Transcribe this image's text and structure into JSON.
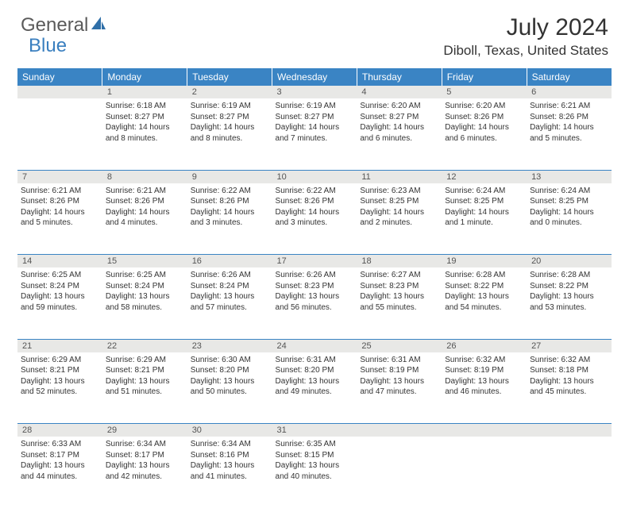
{
  "logo": {
    "text1": "General",
    "text2": "Blue"
  },
  "title": "July 2024",
  "location": "Diboll, Texas, United States",
  "header_bg": "#3a84c4",
  "daynum_bg": "#e8e8e6",
  "border_color": "#3a84c4",
  "days": [
    "Sunday",
    "Monday",
    "Tuesday",
    "Wednesday",
    "Thursday",
    "Friday",
    "Saturday"
  ],
  "weeks": [
    {
      "nums": [
        "",
        "1",
        "2",
        "3",
        "4",
        "5",
        "6"
      ],
      "cells": [
        null,
        {
          "sunrise": "Sunrise: 6:18 AM",
          "sunset": "Sunset: 8:27 PM",
          "day1": "Daylight: 14 hours",
          "day2": "and 8 minutes."
        },
        {
          "sunrise": "Sunrise: 6:19 AM",
          "sunset": "Sunset: 8:27 PM",
          "day1": "Daylight: 14 hours",
          "day2": "and 8 minutes."
        },
        {
          "sunrise": "Sunrise: 6:19 AM",
          "sunset": "Sunset: 8:27 PM",
          "day1": "Daylight: 14 hours",
          "day2": "and 7 minutes."
        },
        {
          "sunrise": "Sunrise: 6:20 AM",
          "sunset": "Sunset: 8:27 PM",
          "day1": "Daylight: 14 hours",
          "day2": "and 6 minutes."
        },
        {
          "sunrise": "Sunrise: 6:20 AM",
          "sunset": "Sunset: 8:26 PM",
          "day1": "Daylight: 14 hours",
          "day2": "and 6 minutes."
        },
        {
          "sunrise": "Sunrise: 6:21 AM",
          "sunset": "Sunset: 8:26 PM",
          "day1": "Daylight: 14 hours",
          "day2": "and 5 minutes."
        }
      ]
    },
    {
      "nums": [
        "7",
        "8",
        "9",
        "10",
        "11",
        "12",
        "13"
      ],
      "cells": [
        {
          "sunrise": "Sunrise: 6:21 AM",
          "sunset": "Sunset: 8:26 PM",
          "day1": "Daylight: 14 hours",
          "day2": "and 5 minutes."
        },
        {
          "sunrise": "Sunrise: 6:21 AM",
          "sunset": "Sunset: 8:26 PM",
          "day1": "Daylight: 14 hours",
          "day2": "and 4 minutes."
        },
        {
          "sunrise": "Sunrise: 6:22 AM",
          "sunset": "Sunset: 8:26 PM",
          "day1": "Daylight: 14 hours",
          "day2": "and 3 minutes."
        },
        {
          "sunrise": "Sunrise: 6:22 AM",
          "sunset": "Sunset: 8:26 PM",
          "day1": "Daylight: 14 hours",
          "day2": "and 3 minutes."
        },
        {
          "sunrise": "Sunrise: 6:23 AM",
          "sunset": "Sunset: 8:25 PM",
          "day1": "Daylight: 14 hours",
          "day2": "and 2 minutes."
        },
        {
          "sunrise": "Sunrise: 6:24 AM",
          "sunset": "Sunset: 8:25 PM",
          "day1": "Daylight: 14 hours",
          "day2": "and 1 minute."
        },
        {
          "sunrise": "Sunrise: 6:24 AM",
          "sunset": "Sunset: 8:25 PM",
          "day1": "Daylight: 14 hours",
          "day2": "and 0 minutes."
        }
      ]
    },
    {
      "nums": [
        "14",
        "15",
        "16",
        "17",
        "18",
        "19",
        "20"
      ],
      "cells": [
        {
          "sunrise": "Sunrise: 6:25 AM",
          "sunset": "Sunset: 8:24 PM",
          "day1": "Daylight: 13 hours",
          "day2": "and 59 minutes."
        },
        {
          "sunrise": "Sunrise: 6:25 AM",
          "sunset": "Sunset: 8:24 PM",
          "day1": "Daylight: 13 hours",
          "day2": "and 58 minutes."
        },
        {
          "sunrise": "Sunrise: 6:26 AM",
          "sunset": "Sunset: 8:24 PM",
          "day1": "Daylight: 13 hours",
          "day2": "and 57 minutes."
        },
        {
          "sunrise": "Sunrise: 6:26 AM",
          "sunset": "Sunset: 8:23 PM",
          "day1": "Daylight: 13 hours",
          "day2": "and 56 minutes."
        },
        {
          "sunrise": "Sunrise: 6:27 AM",
          "sunset": "Sunset: 8:23 PM",
          "day1": "Daylight: 13 hours",
          "day2": "and 55 minutes."
        },
        {
          "sunrise": "Sunrise: 6:28 AM",
          "sunset": "Sunset: 8:22 PM",
          "day1": "Daylight: 13 hours",
          "day2": "and 54 minutes."
        },
        {
          "sunrise": "Sunrise: 6:28 AM",
          "sunset": "Sunset: 8:22 PM",
          "day1": "Daylight: 13 hours",
          "day2": "and 53 minutes."
        }
      ]
    },
    {
      "nums": [
        "21",
        "22",
        "23",
        "24",
        "25",
        "26",
        "27"
      ],
      "cells": [
        {
          "sunrise": "Sunrise: 6:29 AM",
          "sunset": "Sunset: 8:21 PM",
          "day1": "Daylight: 13 hours",
          "day2": "and 52 minutes."
        },
        {
          "sunrise": "Sunrise: 6:29 AM",
          "sunset": "Sunset: 8:21 PM",
          "day1": "Daylight: 13 hours",
          "day2": "and 51 minutes."
        },
        {
          "sunrise": "Sunrise: 6:30 AM",
          "sunset": "Sunset: 8:20 PM",
          "day1": "Daylight: 13 hours",
          "day2": "and 50 minutes."
        },
        {
          "sunrise": "Sunrise: 6:31 AM",
          "sunset": "Sunset: 8:20 PM",
          "day1": "Daylight: 13 hours",
          "day2": "and 49 minutes."
        },
        {
          "sunrise": "Sunrise: 6:31 AM",
          "sunset": "Sunset: 8:19 PM",
          "day1": "Daylight: 13 hours",
          "day2": "and 47 minutes."
        },
        {
          "sunrise": "Sunrise: 6:32 AM",
          "sunset": "Sunset: 8:19 PM",
          "day1": "Daylight: 13 hours",
          "day2": "and 46 minutes."
        },
        {
          "sunrise": "Sunrise: 6:32 AM",
          "sunset": "Sunset: 8:18 PM",
          "day1": "Daylight: 13 hours",
          "day2": "and 45 minutes."
        }
      ]
    },
    {
      "nums": [
        "28",
        "29",
        "30",
        "31",
        "",
        "",
        ""
      ],
      "cells": [
        {
          "sunrise": "Sunrise: 6:33 AM",
          "sunset": "Sunset: 8:17 PM",
          "day1": "Daylight: 13 hours",
          "day2": "and 44 minutes."
        },
        {
          "sunrise": "Sunrise: 6:34 AM",
          "sunset": "Sunset: 8:17 PM",
          "day1": "Daylight: 13 hours",
          "day2": "and 42 minutes."
        },
        {
          "sunrise": "Sunrise: 6:34 AM",
          "sunset": "Sunset: 8:16 PM",
          "day1": "Daylight: 13 hours",
          "day2": "and 41 minutes."
        },
        {
          "sunrise": "Sunrise: 6:35 AM",
          "sunset": "Sunset: 8:15 PM",
          "day1": "Daylight: 13 hours",
          "day2": "and 40 minutes."
        },
        null,
        null,
        null
      ]
    }
  ]
}
